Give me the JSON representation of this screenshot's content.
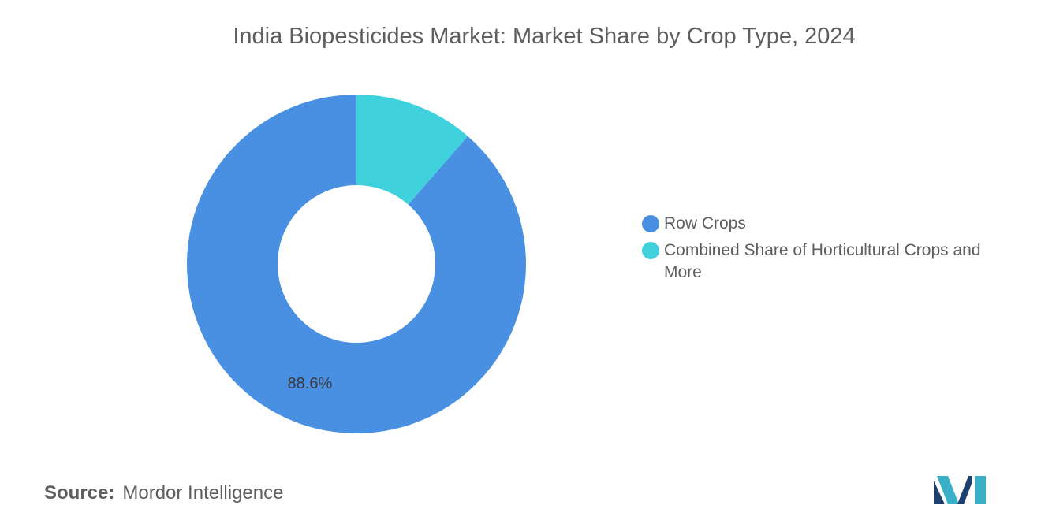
{
  "chart_data": {
    "type": "pie",
    "title": "India Biopesticides Market: Market Share by Crop Type, 2024",
    "donut": true,
    "categories": [
      "Row Crops",
      "Combined Share of Horticultural Crops and More"
    ],
    "values": [
      88.6,
      11.4
    ],
    "unit": "%",
    "data_labels": [
      "88.6%",
      ""
    ],
    "colors": [
      "#4a90e2",
      "#3fd1dc"
    ],
    "legend_placement": "right"
  },
  "footer": {
    "source_key": "Source:",
    "source_value": "Mordor Intelligence"
  },
  "branding": {
    "logo_icon": "mordor-intelligence-logo-icon",
    "logo_colors": [
      "#1f3f6e",
      "#3ab0c8"
    ]
  }
}
